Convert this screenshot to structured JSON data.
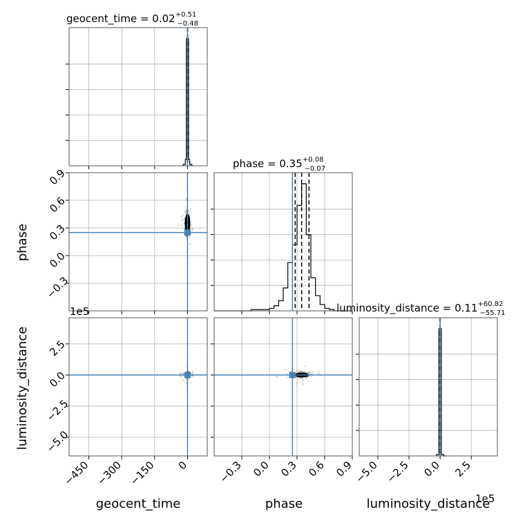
{
  "chart_data": {
    "type": "corner",
    "parameters": [
      "geocent_time",
      "phase",
      "luminosity_distance"
    ],
    "titles": [
      {
        "param": "geocent_time",
        "label": "geocent_time",
        "median": "0.02",
        "upper": "+0.51",
        "lower": "−0.48"
      },
      {
        "param": "phase",
        "label": "phase",
        "median": "0.35",
        "upper": "+0.08",
        "lower": "−0.07"
      },
      {
        "param": "luminosity_distance",
        "label": "luminosity_distance",
        "median": "0.11",
        "upper": "+60.82",
        "lower": "−55.71"
      }
    ],
    "axis_ranges": {
      "geocent_time": [
        -540,
        90
      ],
      "phase": [
        -0.6,
        0.9
      ],
      "luminosity_distance": [
        -650000,
        460000
      ]
    },
    "ticks": {
      "geocent_time": {
        "values": [
          -450,
          -300,
          -150,
          0
        ],
        "labels": [
          "−450",
          "−300",
          "−150",
          "0"
        ]
      },
      "phase": {
        "values": [
          -0.3,
          0.0,
          0.3,
          0.6,
          0.9
        ],
        "labels": [
          "−0.3",
          "0.0",
          "0.3",
          "0.6",
          "0.9"
        ]
      },
      "luminosity_distance": {
        "values": [
          -500000,
          -250000,
          0,
          250000
        ],
        "labels": [
          "−5.0",
          "−2.5",
          "0.0",
          "2.5"
        ]
      }
    },
    "offset_text": "1e5",
    "truths": {
      "geocent_time": 0.0,
      "phase": 0.25,
      "luminosity_distance": 0.0
    },
    "quantile_lines": {
      "geocent_time": [
        -0.46,
        0.02,
        0.53
      ],
      "phase": [
        0.28,
        0.35,
        0.43
      ],
      "luminosity_distance": [
        -55.6,
        0.11,
        60.93
      ]
    },
    "histograms": {
      "geocent_time": {
        "edges": [
          -20,
          -10,
          -5,
          5,
          10,
          20
        ],
        "counts": [
          0.01,
          0.05,
          1.0,
          0.05,
          0.01
        ]
      },
      "phase": {
        "edges": [
          -0.6,
          -0.2,
          0.0,
          0.05,
          0.1,
          0.15,
          0.2,
          0.25,
          0.3,
          0.35,
          0.4,
          0.45,
          0.5,
          0.55,
          0.6,
          0.65,
          0.7,
          0.9
        ],
        "counts": [
          0.0,
          0.01,
          0.02,
          0.04,
          0.08,
          0.18,
          0.38,
          0.52,
          0.83,
          1.0,
          0.6,
          0.26,
          0.12,
          0.05,
          0.02,
          0.01,
          0.0
        ]
      },
      "luminosity_distance": {
        "edges": [
          -30000,
          -10000,
          10000,
          30000,
          50000
        ],
        "counts": [
          0.01,
          1.0,
          0.01,
          0.0
        ]
      }
    },
    "colors": {
      "truth": "#4682b4",
      "hist": "#000000",
      "grid": "#b0b0b0",
      "scatter": "#555555"
    },
    "grid": true
  }
}
